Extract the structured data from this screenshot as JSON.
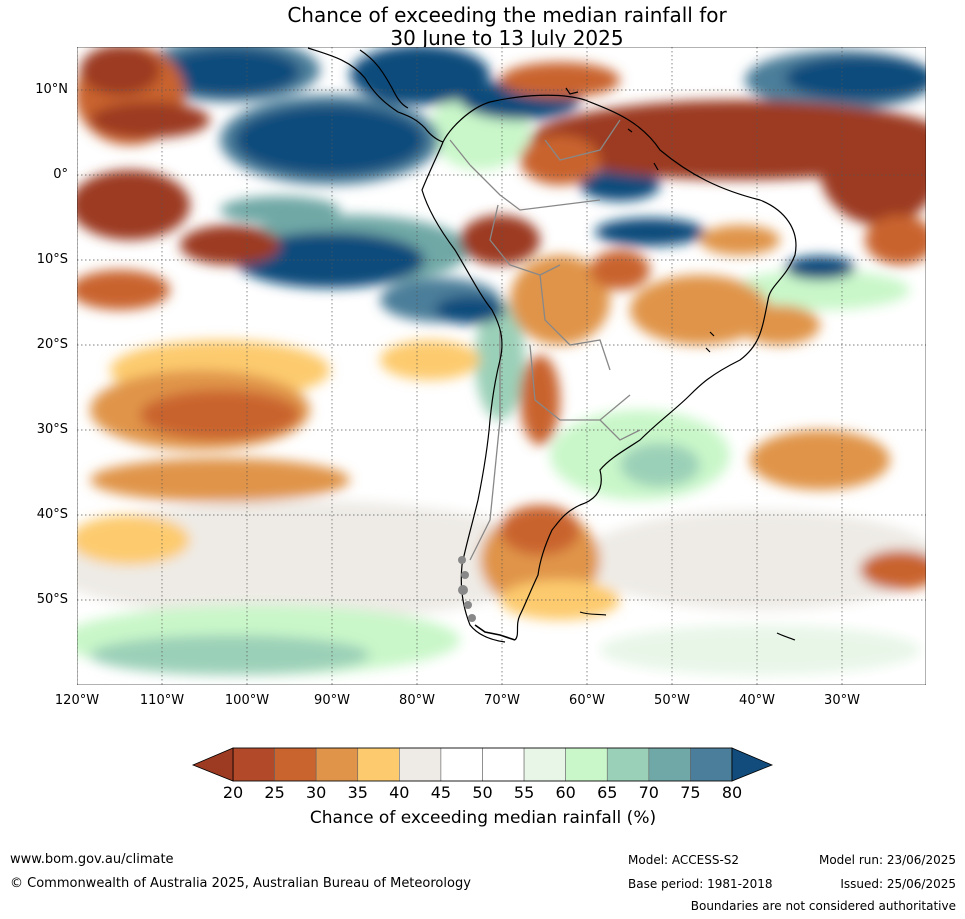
{
  "title_line1": "Chance of exceeding the median rainfall for",
  "title_line2": "30 June to 13 July 2025",
  "lat_labels": [
    "10°N",
    "0°",
    "10°S",
    "20°S",
    "30°S",
    "40°S",
    "50°S"
  ],
  "lon_labels": [
    "120°W",
    "110°W",
    "100°W",
    "90°W",
    "80°W",
    "70°W",
    "60°W",
    "50°W",
    "40°W",
    "30°W"
  ],
  "colorbar": {
    "ticks": [
      "20",
      "25",
      "30",
      "35",
      "40",
      "45",
      "50",
      "55",
      "60",
      "65",
      "70",
      "75",
      "80"
    ],
    "colors": [
      "#9c3a22",
      "#b24a2a",
      "#c9642f",
      "#e0944a",
      "#fdcb6e",
      "#eeebe6",
      "#ffffff",
      "#ffffff",
      "#e8f6e8",
      "#c9f7c9",
      "#9bd0b8",
      "#6fa8a6",
      "#4b7e9a",
      "#114c7c"
    ],
    "label": "Chance of exceeding median rainfall (%)"
  },
  "footer": {
    "website": "www.bom.gov.au/climate",
    "copyright": "© Commonwealth of Australia 2025, Australian Bureau of Meteorology",
    "model": "Model: ACCESS-S2",
    "base_period": "Base period: 1981-2018",
    "model_run": "Model run: 23/06/2025",
    "issued": "Issued: 25/06/2025",
    "disclaimer": "Boundaries are not considered authoritative"
  }
}
